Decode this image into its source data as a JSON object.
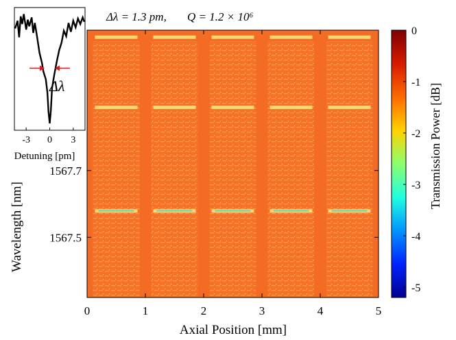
{
  "chart_data": {
    "type": "heatmap",
    "annotation": {
      "delta_lambda_label": "Δλ = 1.3 pm,",
      "q_label": "Q = 1.2 × 10⁶"
    },
    "xlabel": "Axial Position [mm]",
    "ylabel": "Wavelength [nm]",
    "xlim": [
      0,
      5
    ],
    "x_ticks": [
      "0",
      "1",
      "2",
      "3",
      "4",
      "5"
    ],
    "y_ticks": [
      {
        "label": "1567.7",
        "value": 1567.7
      },
      {
        "label": "1567.5",
        "value": 1567.5
      }
    ],
    "ylim": [
      1567.32,
      1568.12
    ],
    "colorbar": {
      "label": "Transmission Power [dB]",
      "range": [
        -5.2,
        0
      ],
      "ticks": [
        "0",
        "-1",
        "-2",
        "-3",
        "-4",
        "-5"
      ],
      "colors": [
        "#7f0000",
        "#d61a00",
        "#ff6a00",
        "#ffd200",
        "#8cff6e",
        "#1fffe0",
        "#0095ff",
        "#0022ff",
        "#00008f"
      ]
    },
    "background_level_db": -1.0,
    "bands": [
      {
        "x_start": 0.1,
        "x_end": 0.9
      },
      {
        "x_start": 1.1,
        "x_end": 1.9
      },
      {
        "x_start": 2.1,
        "x_end": 2.9
      },
      {
        "x_start": 3.1,
        "x_end": 3.9
      },
      {
        "x_start": 4.1,
        "x_end": 4.9
      }
    ],
    "resonance_groups_nm": [
      1568.1,
      1567.89,
      1567.58
    ],
    "inset": {
      "xlabel": "Detuning [pm]",
      "x_ticks": [
        "-3",
        "0",
        "3"
      ],
      "xlim": [
        -4.5,
        4.5
      ],
      "width_label": "Δλ",
      "width_marker_color": "#e8141b",
      "fwhm_pm": 1.3,
      "dip_center_pm": 0,
      "trace": [
        [
          -4.4,
          0.86
        ],
        [
          -4.1,
          0.93
        ],
        [
          -3.9,
          0.78
        ],
        [
          -3.7,
          0.97
        ],
        [
          -3.5,
          0.9
        ],
        [
          -3.3,
          0.99
        ],
        [
          -3.0,
          0.85
        ],
        [
          -2.8,
          0.94
        ],
        [
          -2.6,
          0.88
        ],
        [
          -2.3,
          0.96
        ],
        [
          -2.1,
          0.82
        ],
        [
          -1.9,
          0.91
        ],
        [
          -1.6,
          0.78
        ],
        [
          -1.3,
          0.64
        ],
        [
          -1.0,
          0.55
        ],
        [
          -0.8,
          0.47
        ],
        [
          -0.5,
          0.4
        ],
        [
          -0.3,
          0.28
        ],
        [
          -0.15,
          0.1
        ],
        [
          0.0,
          0.0
        ],
        [
          0.15,
          0.12
        ],
        [
          0.3,
          0.32
        ],
        [
          0.6,
          0.45
        ],
        [
          0.9,
          0.56
        ],
        [
          1.2,
          0.66
        ],
        [
          1.5,
          0.73
        ],
        [
          1.8,
          0.84
        ],
        [
          2.1,
          0.79
        ],
        [
          2.4,
          0.91
        ],
        [
          2.7,
          0.83
        ],
        [
          3.0,
          0.93
        ],
        [
          3.3,
          0.87
        ],
        [
          3.6,
          0.95
        ],
        [
          3.9,
          0.9
        ],
        [
          4.2,
          0.96
        ],
        [
          4.4,
          0.92
        ]
      ]
    }
  }
}
